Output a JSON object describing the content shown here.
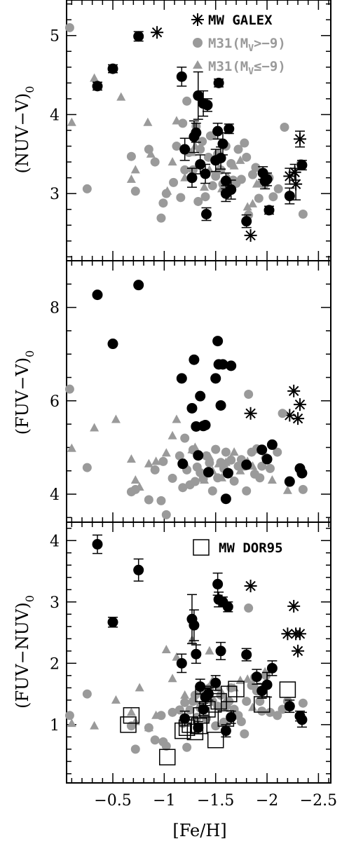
{
  "colors": {
    "black_points": "#000000",
    "gray_points": "#9a9a9a",
    "axes": "#000000"
  },
  "x_axis": {
    "label": "[Fe/H]",
    "ticks": [
      "−0.5",
      "−1",
      "−1.5",
      "−2",
      "−2.5"
    ],
    "tick_values": [
      -0.5,
      -1.0,
      -1.5,
      -2.0,
      -2.5
    ],
    "range": [
      -0.05,
      -2.62
    ],
    "direction": "decreasing-right"
  },
  "legend": {
    "mw_galex": "MW GALEX",
    "m31_faint": "M31(M",
    "m31_faint_sub": "V",
    "m31_faint_tail": ">−9)",
    "m31_bright": "M31(M",
    "m31_bright_sub": "V",
    "m31_bright_tail": "≤−9)",
    "mw_dor95": "MW DOR95"
  },
  "chart_data": [
    {
      "type": "scatter",
      "ylabel": "(NUV−V)",
      "ylabel_sub": "0",
      "yticks": [
        "3",
        "4",
        "5"
      ],
      "ytick_values": [
        3,
        4,
        5
      ],
      "ylim": [
        2.15,
        5.45
      ],
      "series": [
        {
          "name": "MW GALEX",
          "marker": "asterisk",
          "x": [
            -0.93,
            -1.84,
            -2.22,
            -2.27,
            -2.28,
            -2.32
          ],
          "y": [
            5.04,
            2.47,
            3.22,
            3.27,
            3.12,
            3.69
          ],
          "yerr": [
            0,
            0,
            0.1,
            0.1,
            0.2,
            0.1
          ]
        },
        {
          "name": "M31(MV>−9)",
          "marker": "circle-gray",
          "x": [
            -0.08,
            -0.25,
            -0.68,
            -0.72,
            -0.85,
            -0.91,
            -0.97,
            -0.99,
            -1.02,
            -1.09,
            -1.12,
            -1.16,
            -1.18,
            -1.2,
            -1.22,
            -1.24,
            -1.28,
            -1.3,
            -1.31,
            -1.33,
            -1.35,
            -1.37,
            -1.4,
            -1.43,
            -1.45,
            -1.47,
            -1.5,
            -1.52,
            -1.55,
            -1.57,
            -1.6,
            -1.62,
            -1.65,
            -1.67,
            -1.7,
            -1.72,
            -1.75,
            -1.78,
            -1.8,
            -1.82,
            -1.86,
            -1.89,
            -1.92,
            -1.95,
            -1.98,
            -2.02,
            -2.06,
            -2.11,
            -2.17,
            -2.33,
            -2.35
          ],
          "y": [
            5.1,
            3.06,
            3.47,
            3.03,
            3.56,
            3.4,
            2.69,
            2.88,
            3.0,
            3.14,
            3.6,
            2.95,
            3.89,
            3.3,
            4.17,
            3.52,
            3.3,
            3.72,
            3.85,
            2.9,
            3.56,
            3.66,
            2.96,
            3.46,
            3.73,
            3.1,
            3.22,
            3.5,
            3.3,
            3.12,
            3.6,
            3.05,
            3.38,
            3.17,
            3.13,
            3.56,
            3.18,
            3.64,
            3.46,
            2.73,
            3.24,
            3.33,
            2.94,
            3.13,
            3.12,
            3.2,
            2.96,
            3.06,
            3.84,
            3.38,
            2.74
          ]
        },
        {
          "name": "M31(MV≤−9)",
          "marker": "triangle-gray",
          "x": [
            -0.1,
            -0.32,
            -0.58,
            -0.68,
            -0.72,
            -0.84,
            -0.87,
            -1.03,
            -1.08,
            -1.12,
            -1.2,
            -1.27,
            -1.3,
            -1.39,
            -1.44,
            -1.47,
            -1.53,
            -1.56,
            -1.57,
            -1.6,
            -1.62,
            -1.68,
            -1.74,
            -1.81,
            -1.86,
            -1.9,
            -1.98
          ],
          "y": [
            3.9,
            4.46,
            4.22,
            3.18,
            3.3,
            3.9,
            3.5,
            3.03,
            3.4,
            3.92,
            3.2,
            3.52,
            3.6,
            3.08,
            3.3,
            3.74,
            3.32,
            3.06,
            3.62,
            3.13,
            3.21,
            3.35,
            3.42,
            2.83,
            2.87,
            3.12,
            3.26
          ]
        },
        {
          "name": "",
          "marker": "circle-black",
          "x": [
            -0.35,
            -0.5,
            -0.75,
            -1.17,
            -1.2,
            -1.27,
            -1.29,
            -1.31,
            -1.33,
            -1.35,
            -1.38,
            -1.4,
            -1.41,
            -1.42,
            -1.5,
            -1.52,
            -1.53,
            -1.55,
            -1.57,
            -1.6,
            -1.6,
            -1.63,
            -1.65,
            -1.8,
            -1.96,
            -1.98,
            -2.0,
            -2.02,
            -2.22,
            -2.34
          ],
          "y": [
            4.36,
            4.58,
            4.99,
            4.48,
            3.56,
            3.2,
            3.72,
            3.77,
            4.24,
            3.37,
            4.14,
            3.25,
            2.74,
            4.12,
            3.42,
            3.79,
            4.4,
            3.45,
            3.63,
            3.0,
            3.16,
            3.82,
            3.05,
            2.65,
            3.26,
            3.16,
            3.18,
            2.79,
            2.97,
            3.36
          ],
          "yerr": [
            0.05,
            0.05,
            0.06,
            0.12,
            0.14,
            0.12,
            0.2,
            0.12,
            0.3,
            0.12,
            0.16,
            0.12,
            0.08,
            0.08,
            0.14,
            0.1,
            0.05,
            0.14,
            0.14,
            0.1,
            0.1,
            0.06,
            0.12,
            0.08,
            0.08,
            0.1,
            0.08,
            0.05,
            0.1,
            0.06
          ]
        }
      ]
    },
    {
      "type": "scatter",
      "ylabel": "(FUV−V)",
      "ylabel_sub": "0",
      "yticks": [
        "4",
        "6",
        "8"
      ],
      "ytick_values": [
        4,
        6,
        8
      ],
      "ylim": [
        3.4,
        9.0
      ],
      "series": [
        {
          "name": "MW GALEX",
          "marker": "asterisk",
          "x": [
            -1.84,
            -2.22,
            -2.26,
            -2.3,
            -2.32
          ],
          "y": [
            5.73,
            5.69,
            6.21,
            5.62,
            5.92
          ]
        },
        {
          "name": "M31(MV>−9)",
          "marker": "circle-gray",
          "x": [
            -0.08,
            -0.25,
            -0.68,
            -0.72,
            -0.85,
            -0.91,
            -0.97,
            -0.99,
            -1.02,
            -1.08,
            -1.15,
            -1.18,
            -1.2,
            -1.22,
            -1.25,
            -1.28,
            -1.3,
            -1.32,
            -1.35,
            -1.38,
            -1.41,
            -1.44,
            -1.47,
            -1.5,
            -1.52,
            -1.55,
            -1.58,
            -1.6,
            -1.63,
            -1.65,
            -1.68,
            -1.72,
            -1.75,
            -1.78,
            -1.8,
            -1.82,
            -1.85,
            -1.88,
            -1.9,
            -1.93,
            -1.95,
            -1.99,
            -2.03,
            -2.1,
            -2.15,
            -2.35
          ],
          "y": [
            6.25,
            4.57,
            4.05,
            4.1,
            3.88,
            4.52,
            3.86,
            4.7,
            3.56,
            4.34,
            4.82,
            4.14,
            5.2,
            4.52,
            4.2,
            4.95,
            4.27,
            4.58,
            4.46,
            4.33,
            4.82,
            4.67,
            4.07,
            4.96,
            4.35,
            4.68,
            4.55,
            4.9,
            4.46,
            4.73,
            4.28,
            4.6,
            4.74,
            4.6,
            4.07,
            6.14,
            4.9,
            4.43,
            4.97,
            4.35,
            4.6,
            4.78,
            4.55,
            4.9,
            5.73,
            4.1
          ]
        },
        {
          "name": "M31(MV≤−9)",
          "marker": "triangle-gray",
          "x": [
            -0.1,
            -0.32,
            -0.53,
            -0.68,
            -0.72,
            -0.76,
            -0.85,
            -0.92,
            -1.02,
            -1.08,
            -1.12,
            -1.2,
            -1.27,
            -1.3,
            -1.39,
            -1.44,
            -1.47,
            -1.53,
            -1.56,
            -1.6,
            -1.62,
            -1.68,
            -1.74,
            -1.81,
            -1.86,
            -1.9,
            -1.98,
            -2.05,
            -2.2
          ],
          "y": [
            4.98,
            5.42,
            5.6,
            4.75,
            4.3,
            4.15,
            4.65,
            4.7,
            4.88,
            5.25,
            5.6,
            4.67,
            4.95,
            5.0,
            4.3,
            4.8,
            4.5,
            4.65,
            4.35,
            4.68,
            4.45,
            4.9,
            4.5,
            4.7,
            4.6,
            4.42,
            4.84,
            4.3,
            4.08
          ]
        },
        {
          "name": "",
          "marker": "circle-black",
          "x": [
            -0.35,
            -0.5,
            -0.75,
            -1.17,
            -1.18,
            -1.27,
            -1.29,
            -1.31,
            -1.33,
            -1.35,
            -1.38,
            -1.4,
            -1.43,
            -1.5,
            -1.52,
            -1.53,
            -1.55,
            -1.57,
            -1.6,
            -1.62,
            -1.65,
            -1.8,
            -1.95,
            -2.0,
            -2.05,
            -2.22,
            -2.32,
            -2.34
          ],
          "y": [
            8.27,
            7.22,
            8.48,
            6.48,
            4.65,
            5.84,
            6.88,
            5.45,
            4.83,
            6.1,
            5.46,
            5.48,
            4.47,
            6.48,
            7.28,
            6.78,
            5.9,
            6.78,
            3.9,
            4.45,
            6.75,
            4.63,
            4.95,
            4.75,
            5.06,
            4.27,
            4.55,
            4.45
          ]
        }
      ]
    },
    {
      "type": "scatter",
      "ylabel": "(FUV−NUV)",
      "ylabel_sub": "0",
      "yticks": [
        "1",
        "2",
        "3",
        "4"
      ],
      "ytick_values": [
        1,
        2,
        3,
        4
      ],
      "ylim": [
        0.05,
        4.3
      ],
      "series": [
        {
          "name": "MW GALEX",
          "marker": "asterisk",
          "x": [
            -1.84,
            -2.2,
            -2.26,
            -2.28,
            -2.3,
            -2.32
          ],
          "y": [
            3.26,
            2.48,
            2.93,
            2.48,
            2.2,
            2.48
          ]
        },
        {
          "name": "M31(MV>−9)",
          "marker": "circle-gray",
          "x": [
            -0.08,
            -0.25,
            -0.68,
            -0.72,
            -0.85,
            -0.91,
            -0.97,
            -0.99,
            -1.02,
            -1.08,
            -1.15,
            -1.18,
            -1.2,
            -1.22,
            -1.25,
            -1.28,
            -1.3,
            -1.32,
            -1.35,
            -1.38,
            -1.41,
            -1.44,
            -1.47,
            -1.5,
            -1.52,
            -1.55,
            -1.58,
            -1.6,
            -1.63,
            -1.65,
            -1.68,
            -1.72,
            -1.75,
            -1.78,
            -1.8,
            -1.82,
            -1.85,
            -1.88,
            -1.9,
            -1.93,
            -1.95,
            -1.99,
            -2.03,
            -2.1,
            -2.15,
            -2.2,
            -2.35
          ],
          "y": [
            1.15,
            1.5,
            0.98,
            0.6,
            0.95,
            0.75,
            1.15,
            0.72,
            0.65,
            1.2,
            1.24,
            1.02,
            1.36,
            0.63,
            1.24,
            1.38,
            1.48,
            1.12,
            1.27,
            1.52,
            1.1,
            1.6,
            1.38,
            0.98,
            1.3,
            1.48,
            1.04,
            1.3,
            1.38,
            1.6,
            1.25,
            1.15,
            1.05,
            0.85,
            1.38,
            2.9,
            1.64,
            1.77,
            1.55,
            1.38,
            1.22,
            1.8,
            1.2,
            1.15,
            1.25,
            1.38,
            1.35
          ]
        },
        {
          "name": "M31(MV≤−9)",
          "marker": "triangle-gray",
          "x": [
            -0.1,
            -0.32,
            -0.53,
            -0.68,
            -0.72,
            -0.76,
            -0.85,
            -0.92,
            -1.02,
            -1.08,
            -1.12,
            -1.2,
            -1.27,
            -1.3,
            -1.39,
            -1.44,
            -1.47,
            -1.53,
            -1.56,
            -1.6,
            -1.62,
            -1.68,
            -1.74,
            -1.81,
            -1.86,
            -1.9,
            -1.98
          ],
          "y": [
            1.02,
            0.98,
            1.4,
            1.2,
            1.05,
            1.6,
            0.95,
            1.15,
            2.22,
            1.75,
            2.1,
            1.48,
            2.38,
            1.38,
            1.52,
            2.2,
            1.72,
            1.6,
            1.52,
            1.4,
            1.32,
            1.6,
            1.72,
            1.74,
            1.28,
            1.6,
            1.86
          ]
        },
        {
          "name": "",
          "marker": "circle-black",
          "x": [
            -0.35,
            -0.5,
            -0.75,
            -1.17,
            -1.2,
            -1.27,
            -1.29,
            -1.31,
            -1.33,
            -1.35,
            -1.38,
            -1.4,
            -1.43,
            -1.5,
            -1.52,
            -1.53,
            -1.55,
            -1.57,
            -1.6,
            -1.62,
            -1.65,
            -1.8,
            -1.9,
            -1.95,
            -2.0,
            -2.05,
            -2.22,
            -2.32,
            -2.34
          ],
          "y": [
            3.94,
            2.67,
            3.52,
            2.0,
            1.1,
            2.72,
            2.62,
            2.15,
            0.95,
            1.62,
            1.25,
            1.45,
            1.5,
            1.68,
            3.29,
            3.04,
            2.2,
            3.0,
            0.9,
            2.92,
            1.12,
            2.14,
            1.78,
            1.55,
            1.65,
            1.92,
            1.3,
            1.14,
            1.08
          ],
          "yerr": [
            0.15,
            0.08,
            0.18,
            0.15,
            0.12,
            0.4,
            0.25,
            0.15,
            0.1,
            0.12,
            0.1,
            0.14,
            0.1,
            0.12,
            0.18,
            0.12,
            0.14,
            0.08,
            0.1,
            0.08,
            0.1,
            0.1,
            0.12,
            0.12,
            0.2,
            0.12,
            0.1,
            0.08,
            0.12
          ]
        },
        {
          "name": "MW DOR95",
          "marker": "open-square",
          "x": [
            -0.65,
            -0.68,
            -1.03,
            -1.18,
            -1.22,
            -1.25,
            -1.3,
            -1.34,
            -1.36,
            -1.38,
            -1.42,
            -1.48,
            -1.5,
            -1.53,
            -1.6,
            -1.63,
            -1.7,
            -1.95,
            -2.2
          ],
          "y": [
            1.0,
            1.15,
            0.47,
            0.9,
            0.95,
            1.0,
            0.88,
            0.98,
            1.15,
            1.5,
            1.25,
            1.33,
            0.75,
            1.38,
            1.1,
            1.5,
            1.58,
            1.33,
            1.57
          ]
        }
      ]
    }
  ]
}
